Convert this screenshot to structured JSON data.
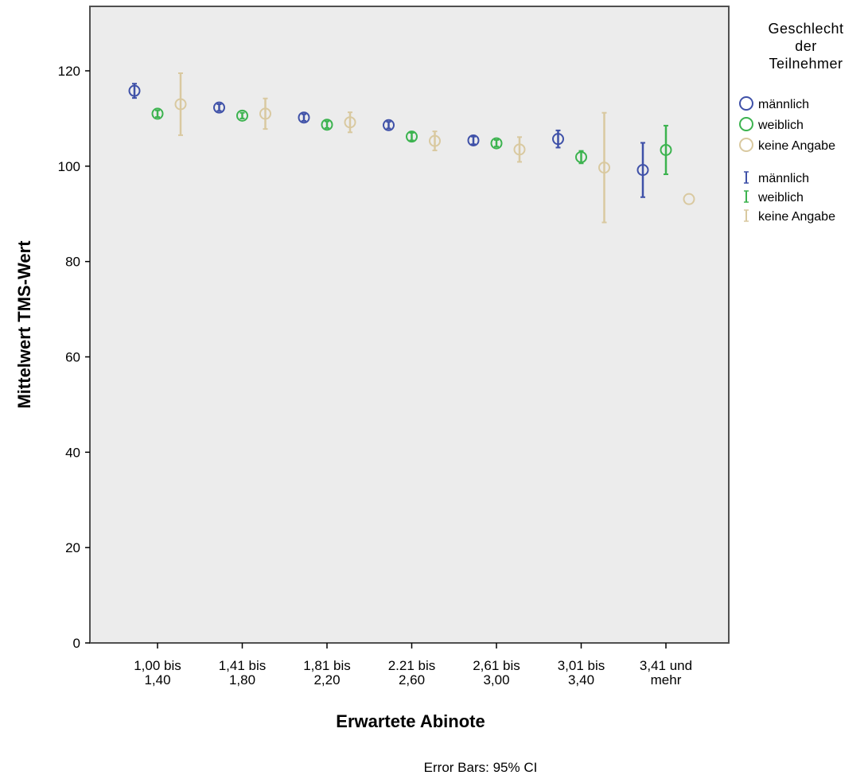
{
  "chart_data": {
    "type": "scatter",
    "subtype": "error-bar",
    "xlabel": "Erwartete Abinote",
    "ylabel": "Mittelwert TMS-Wert",
    "ylim": [
      0,
      120
    ],
    "yticks": [
      0,
      20,
      40,
      60,
      80,
      100,
      120
    ],
    "categories": [
      [
        "1,00 bis",
        "1,40"
      ],
      [
        "1,41 bis",
        "1,80"
      ],
      [
        "1,81 bis",
        "2,20"
      ],
      [
        "2.21 bis",
        "2,60"
      ],
      [
        "2,61 bis",
        "3,00"
      ],
      [
        "3,01 bis",
        "3,40"
      ],
      [
        "3,41 und",
        "mehr"
      ]
    ],
    "legend": {
      "title": [
        "Geschlecht",
        "der",
        "Teilnehmer"
      ],
      "placement": "right",
      "marker_labels": [
        "männlich",
        "weiblich",
        "keine Angabe"
      ],
      "errorbar_labels": [
        "männlich",
        "weiblich",
        "keine Angabe"
      ]
    },
    "series": [
      {
        "name": "männlich",
        "color": "#3f51a8",
        "mean": [
          115.8,
          112.3,
          110.2,
          108.6,
          105.4,
          105.7,
          99.2
        ],
        "ci_low": [
          114.3,
          111.6,
          109.5,
          107.9,
          104.6,
          103.9,
          93.5
        ],
        "ci_high": [
          117.3,
          113.0,
          110.9,
          109.3,
          106.2,
          107.5,
          104.9
        ]
      },
      {
        "name": "weiblich",
        "color": "#3cb34f",
        "mean": [
          111.0,
          110.6,
          108.7,
          106.2,
          104.8,
          101.9,
          103.4
        ],
        "ci_low": [
          110.3,
          110.0,
          108.0,
          105.4,
          104.1,
          100.6,
          98.3
        ],
        "ci_high": [
          111.7,
          111.2,
          109.4,
          107.0,
          105.5,
          103.2,
          108.5
        ]
      },
      {
        "name": "keine Angabe",
        "color": "#d9c9a0",
        "mean": [
          113.0,
          111.0,
          109.2,
          105.3,
          103.5,
          99.7,
          93.1
        ],
        "ci_low": [
          106.5,
          107.8,
          107.1,
          103.3,
          100.9,
          88.2,
          null
        ],
        "ci_high": [
          119.5,
          114.2,
          111.3,
          107.3,
          106.1,
          111.2,
          null
        ]
      }
    ],
    "footnote": "Error Bars: 95% CI",
    "grid": false,
    "plot_background": "#ececec"
  }
}
